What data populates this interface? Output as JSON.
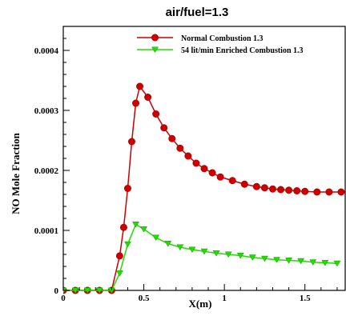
{
  "chart_data": {
    "type": "line",
    "title": "air/fuel=1.3",
    "xlabel": "X(m)",
    "ylabel": "NO Mole Fraction",
    "xlim": [
      0,
      1.75
    ],
    "ylim": [
      0,
      0.00044
    ],
    "x_ticks": [
      0,
      0.5,
      1,
      1.5
    ],
    "x_tick_labels": [
      "0",
      "0.5",
      "1",
      "1.5"
    ],
    "y_ticks": [
      0,
      0.0001,
      0.0002,
      0.0003,
      0.0004
    ],
    "y_tick_labels": [
      "0",
      "0.0001",
      "0.0002",
      "0.0003",
      "0.0004"
    ],
    "grid": false,
    "legend_position": "top-right",
    "series": [
      {
        "name": "Normal Combustion  1.3",
        "color": "#cc0000",
        "marker": "circle",
        "x": [
          0,
          0.075,
          0.15,
          0.225,
          0.3,
          0.35,
          0.375,
          0.4,
          0.425,
          0.45,
          0.475,
          0.525,
          0.575,
          0.625,
          0.675,
          0.725,
          0.775,
          0.825,
          0.875,
          0.925,
          0.975,
          1.05,
          1.125,
          1.2,
          1.25,
          1.3,
          1.35,
          1.4,
          1.45,
          1.5,
          1.575,
          1.65,
          1.725
        ],
        "y": [
          0,
          0,
          0,
          0,
          0,
          5.75e-05,
          0.000105,
          0.00017,
          0.000248,
          0.000312,
          0.00034,
          0.000322,
          0.000294,
          0.000271,
          0.000253,
          0.000237,
          0.000224,
          0.000212,
          0.000203,
          0.000196,
          0.000189,
          0.000183,
          0.000177,
          0.000173,
          0.000171,
          0.000169,
          0.000168,
          0.000167,
          0.000166,
          0.000165,
          0.000164,
          0.000164,
          0.000164
        ]
      },
      {
        "name": "54 lit/min Enriched Combustion 1.3",
        "color": "#22dd00",
        "marker": "triangle-down",
        "x": [
          0,
          0.075,
          0.15,
          0.225,
          0.3,
          0.35,
          0.4,
          0.45,
          0.5,
          0.575,
          0.65,
          0.725,
          0.8,
          0.875,
          0.95,
          1.025,
          1.1,
          1.175,
          1.25,
          1.325,
          1.4,
          1.475,
          1.55,
          1.625,
          1.7
        ],
        "y": [
          0,
          0,
          0,
          0,
          0,
          2.85e-05,
          7.7e-05,
          0.00011,
          0.000102,
          8.8e-05,
          7.8e-05,
          7.2e-05,
          6.8e-05,
          6.5e-05,
          6.2e-05,
          6e-05,
          5.8e-05,
          5.5e-05,
          5.3e-05,
          5.1e-05,
          5e-05,
          4.9e-05,
          4.7e-05,
          4.6e-05,
          4.5e-05
        ]
      }
    ]
  }
}
